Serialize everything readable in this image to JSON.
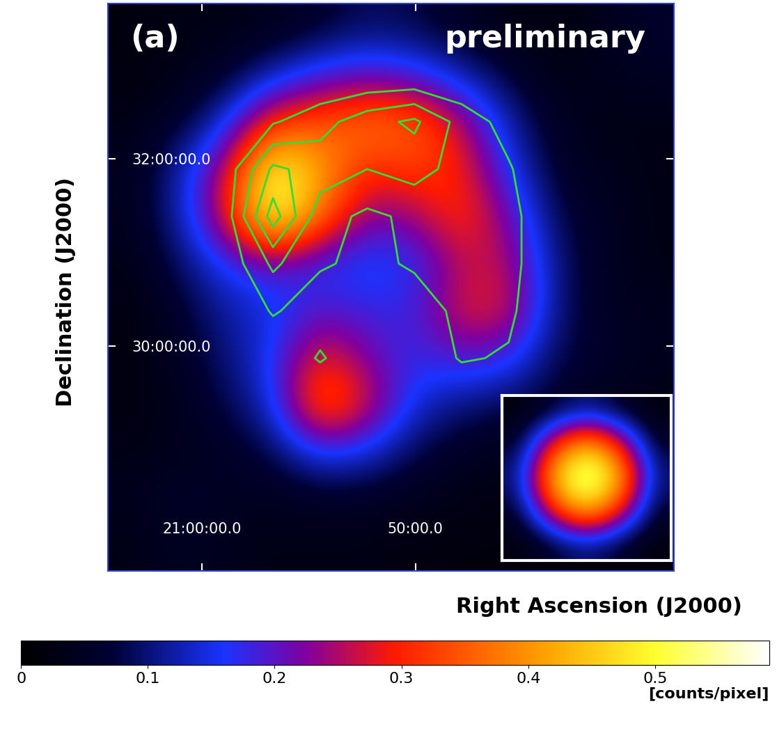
{
  "chart_data": {
    "type": "heatmap",
    "panel_label": "(a)",
    "annotation": "preliminary",
    "x_label": "Right Ascension (J2000)",
    "y_label": "Declination (J2000)",
    "xlim": [
      1264.4,
      1237.9
    ],
    "ylim": [
      27.6,
      33.66
    ],
    "xticks": [
      {
        "value": 1260,
        "label": "21:00:00.0"
      },
      {
        "value": 1250,
        "label": "50:00.0"
      }
    ],
    "yticks": [
      {
        "value": 32,
        "label": "32:00:00.0"
      },
      {
        "value": 30,
        "label": "30:00:00.0"
      }
    ],
    "tick_labels": true,
    "cells": [
      [
        0.02,
        0.03,
        0.03,
        0.04,
        0.06,
        0.09,
        0.08,
        0.05,
        0.03,
        0.02,
        0.04,
        0.06
      ],
      [
        0.02,
        0.03,
        0.06,
        0.12,
        0.18,
        0.2,
        0.18,
        0.12,
        0.07,
        0.03,
        0.04,
        0.05
      ],
      [
        0.03,
        0.06,
        0.14,
        0.32,
        0.34,
        0.38,
        0.36,
        0.26,
        0.12,
        0.05,
        0.03,
        0.03
      ],
      [
        0.04,
        0.12,
        0.26,
        0.52,
        0.42,
        0.3,
        0.33,
        0.3,
        0.16,
        0.06,
        0.04,
        0.03
      ],
      [
        0.04,
        0.12,
        0.28,
        0.55,
        0.38,
        0.22,
        0.24,
        0.32,
        0.22,
        0.08,
        0.05,
        0.03
      ],
      [
        0.03,
        0.09,
        0.16,
        0.2,
        0.16,
        0.14,
        0.16,
        0.26,
        0.26,
        0.1,
        0.05,
        0.03
      ],
      [
        0.02,
        0.06,
        0.12,
        0.14,
        0.2,
        0.18,
        0.18,
        0.28,
        0.28,
        0.1,
        0.05,
        0.04
      ],
      [
        0.02,
        0.05,
        0.1,
        0.16,
        0.3,
        0.22,
        0.17,
        0.2,
        0.18,
        0.08,
        0.06,
        0.04
      ],
      [
        0.02,
        0.04,
        0.08,
        0.14,
        0.38,
        0.28,
        0.14,
        0.1,
        0.08,
        0.06,
        0.04,
        0.03
      ],
      [
        0.03,
        0.04,
        0.05,
        0.08,
        0.16,
        0.14,
        0.08,
        0.05,
        0.04,
        0.03,
        0.02,
        0.02
      ],
      [
        0.04,
        0.06,
        0.05,
        0.04,
        0.05,
        0.05,
        0.04,
        0.03,
        0.02,
        0.02,
        0.02,
        0.02
      ],
      [
        0.03,
        0.05,
        0.04,
        0.03,
        0.03,
        0.03,
        0.02,
        0.02,
        0.02,
        0.02,
        0.02,
        0.02
      ]
    ],
    "colorbar": {
      "range": [
        0,
        0.59
      ],
      "ticks": [
        0,
        0.1,
        0.2,
        0.3,
        0.4,
        0.5
      ],
      "label": "[counts/pixel]"
    },
    "contours": {
      "color": "#33dd33",
      "levels": [
        1,
        2,
        3,
        4
      ],
      "cells": [
        [
          0,
          0,
          0,
          0,
          0,
          0,
          0,
          0,
          0,
          0,
          0,
          0
        ],
        [
          0,
          0,
          0,
          0,
          0,
          0,
          0,
          0,
          0,
          0,
          0,
          0
        ],
        [
          0,
          0,
          0,
          0.9,
          1.6,
          2.6,
          3.2,
          1.6,
          0.6,
          0,
          0,
          0
        ],
        [
          0,
          0,
          0.4,
          3.2,
          2.6,
          2.0,
          2.4,
          1.6,
          1.1,
          0,
          0,
          0
        ],
        [
          0,
          0,
          0.5,
          4.5,
          1.4,
          0.8,
          1.2,
          1.4,
          1.3,
          0.2,
          0,
          0
        ],
        [
          0,
          0,
          0.3,
          2.2,
          1.1,
          0.8,
          1.1,
          1.3,
          1.3,
          0.2,
          0,
          0
        ],
        [
          0,
          0,
          0,
          1.1,
          0.5,
          0.4,
          0.6,
          1.2,
          1.2,
          0,
          0,
          0
        ],
        [
          0,
          0,
          0,
          0.2,
          1.1,
          0.3,
          0.2,
          1.1,
          0.9,
          0,
          0,
          0
        ],
        [
          0,
          0,
          0,
          0,
          0,
          0,
          0,
          0,
          0,
          0,
          0,
          0
        ],
        [
          0,
          0,
          0,
          0,
          0,
          0,
          0,
          0,
          0,
          0,
          0,
          0
        ],
        [
          0,
          0,
          0,
          0,
          0,
          0,
          0,
          0,
          0,
          0,
          0,
          0
        ],
        [
          0,
          0,
          0,
          0,
          0,
          0,
          0,
          0,
          0,
          0,
          0,
          0
        ]
      ]
    },
    "psf_cells": [
      [
        0.02,
        0.06,
        0.1,
        0.06,
        0.02
      ],
      [
        0.06,
        0.3,
        0.45,
        0.3,
        0.06
      ],
      [
        0.1,
        0.45,
        0.59,
        0.45,
        0.1
      ],
      [
        0.06,
        0.3,
        0.45,
        0.3,
        0.06
      ],
      [
        0.02,
        0.06,
        0.1,
        0.06,
        0.02
      ]
    ]
  }
}
